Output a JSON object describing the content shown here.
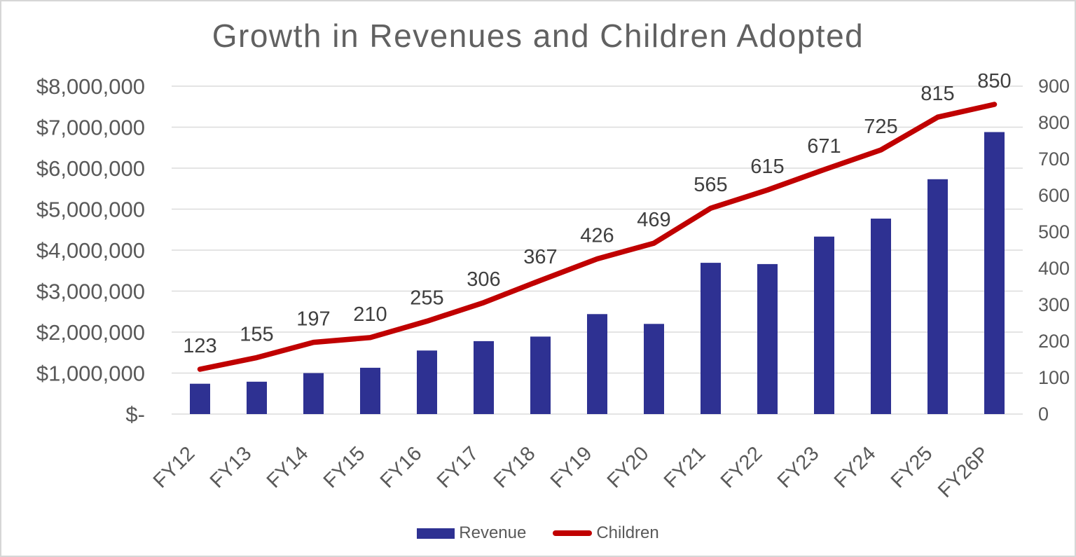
{
  "title": "Growth in Revenues and Children Adopted",
  "chart_data": {
    "type": "bar",
    "subtype": "combo-bar-line",
    "categories": [
      "FY12",
      "FY13",
      "FY14",
      "FY15",
      "FY16",
      "FY17",
      "FY18",
      "FY19",
      "FY20",
      "FY21",
      "FY22",
      "FY23",
      "FY24",
      "FY25",
      "FY26P"
    ],
    "series": [
      {
        "name": "Revenue",
        "type": "bar",
        "axis": "left",
        "color": "#2E3192",
        "values": [
          740000,
          790000,
          1000000,
          1130000,
          1550000,
          1780000,
          1890000,
          2440000,
          2200000,
          3690000,
          3660000,
          4330000,
          4770000,
          5730000,
          6880000
        ]
      },
      {
        "name": "Children",
        "type": "line",
        "axis": "right",
        "color": "#C00000",
        "values": [
          123,
          155,
          197,
          210,
          255,
          306,
          367,
          426,
          469,
          565,
          615,
          671,
          725,
          815,
          850
        ],
        "data_labels": true
      }
    ],
    "left_axis": {
      "min": 0,
      "max": 8000000,
      "step": 1000000,
      "tick_labels": [
        "$-",
        "$1,000,000",
        "$2,000,000",
        "$3,000,000",
        "$4,000,000",
        "$5,000,000",
        "$6,000,000",
        "$7,000,000",
        "$8,000,000"
      ]
    },
    "right_axis": {
      "min": 0,
      "max": 900,
      "step": 100,
      "tick_labels": [
        "0",
        "100",
        "200",
        "300",
        "400",
        "500",
        "600",
        "700",
        "800",
        "900"
      ]
    },
    "grid": true,
    "legend_position": "bottom",
    "colors": {
      "grid": "#DCDCDC",
      "axis_text": "#595959",
      "data_label_text": "#3F3F3F",
      "title_text": "#616161",
      "background": "#FFFFFF",
      "border": "#D6D6D6"
    }
  },
  "legend": {
    "items": [
      {
        "label": "Revenue",
        "marker": "bar-swatch",
        "color": "#2E3192"
      },
      {
        "label": "Children",
        "marker": "line-swatch",
        "color": "#C00000"
      }
    ]
  }
}
